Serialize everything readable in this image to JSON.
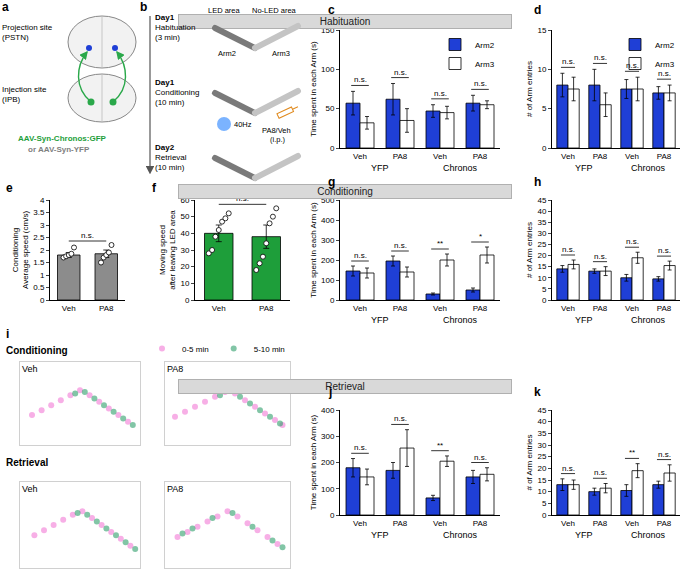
{
  "diagram_a": {
    "label": "a",
    "projection_site": [
      "Projection site",
      "(PSTN)"
    ],
    "injection_site": [
      "Injection site",
      "(IPB)"
    ],
    "virus": "AAV-Syn-Chronos:GFP",
    "control_virus": "or AAV-Syn-YFP"
  },
  "diagram_b": {
    "label": "b",
    "steps": [
      {
        "day": "Day1",
        "name": "Habituation",
        "duration": "(3 min)"
      },
      {
        "day": "Day1",
        "name": "Conditioning",
        "duration": "(10 min)"
      },
      {
        "day": "Day2",
        "name": "Retrieval",
        "duration": "(10 min)"
      }
    ],
    "led_area": "LED area",
    "no_led_area": "No-LED area",
    "arms": [
      "Arm2",
      "Arm3"
    ],
    "stimulation": "40Hz",
    "injection": [
      "PA8/Veh",
      "(i.p.)"
    ]
  },
  "chart_data": [
    {
      "label": "c",
      "type": "bar",
      "header": "Habituation",
      "y_label": [
        "Time spent in each Arm (s)"
      ],
      "categories": [
        "Veh",
        "PA8",
        "Veh",
        "PA8"
      ],
      "group_labels": [
        "YFP",
        "YFP",
        "Chronos",
        "Chronos"
      ],
      "legend": "upper right",
      "series": [
        {
          "name": "Arm2",
          "color": "#1f3fd6",
          "values": [
            57,
            62,
            47,
            57
          ],
          "errors": [
            15,
            20,
            8,
            10
          ]
        },
        {
          "name": "Arm3",
          "color": "#ffffff",
          "values": [
            32,
            35,
            45,
            55
          ],
          "errors": [
            8,
            15,
            8,
            5
          ]
        }
      ],
      "significance": [
        "n.s.",
        "n.s.",
        "n.s.",
        "n.s."
      ],
      "ylim": [
        0,
        150
      ],
      "yticks": [
        0,
        50,
        100,
        150
      ]
    },
    {
      "label": "d",
      "type": "bar",
      "y_label": [
        "# of Arm entries"
      ],
      "categories": [
        "Veh",
        "PA8",
        "Veh",
        "PA8"
      ],
      "group_labels": [
        "YFP",
        "YFP",
        "Chronos",
        "Chronos"
      ],
      "legend": "upper right",
      "series": [
        {
          "name": "Arm2",
          "color": "#1f3fd6",
          "values": [
            8,
            8,
            7.5,
            7
          ],
          "errors": [
            1.5,
            2,
            1.2,
            0.8
          ]
        },
        {
          "name": "Arm3",
          "color": "#ffffff",
          "values": [
            7.5,
            5.5,
            7.5,
            7
          ],
          "errors": [
            1.5,
            1.5,
            1.5,
            1
          ]
        }
      ],
      "significance": [
        "n.s.",
        "n.s.",
        "n.s.",
        "n.s."
      ],
      "ylim": [
        0,
        15
      ],
      "yticks": [
        0,
        5,
        10,
        15
      ]
    },
    {
      "label": "e",
      "type": "bar",
      "y_label": [
        "Conditioning",
        "Average speed (cm/s)"
      ],
      "categories": [
        "Veh",
        "PA8"
      ],
      "color": "#8c8c8c",
      "values": [
        1.8,
        1.85
      ],
      "errors": [
        0.1,
        0.15
      ],
      "points": [
        [
          1.7,
          1.75,
          1.8,
          1.85,
          2.1
        ],
        [
          1.5,
          1.7,
          1.8,
          1.9,
          2.2
        ]
      ],
      "significance": "n.s.",
      "ylim": [
        0,
        4
      ],
      "yticks": [
        0,
        0.5,
        1,
        1.5,
        2,
        2.5,
        3,
        3.5,
        4
      ]
    },
    {
      "label": "f",
      "type": "bar",
      "y_label": [
        "Moving speed",
        "after leaving LED area"
      ],
      "categories": [
        "Veh",
        "PA8"
      ],
      "color": "#1e9e3a",
      "values": [
        40,
        38
      ],
      "errors": [
        5,
        7
      ],
      "points": [
        [
          28,
          30,
          38,
          42,
          47,
          49,
          52
        ],
        [
          18,
          22,
          26,
          34,
          46,
          50,
          55
        ]
      ],
      "significance": "n.s.",
      "ylim": [
        0,
        60
      ],
      "yticks": [
        0,
        10,
        20,
        30,
        40,
        50,
        60
      ]
    },
    {
      "label": "g",
      "type": "bar",
      "header": "Conditioning",
      "y_label": [
        "Time spent in each Arm (s)"
      ],
      "categories": [
        "Veh",
        "PA8",
        "Veh",
        "PA8"
      ],
      "group_labels": [
        "YFP",
        "YFP",
        "Chronos",
        "Chronos"
      ],
      "series": [
        {
          "name": "Arm2",
          "color": "#1f3fd6",
          "values": [
            145,
            195,
            30,
            50
          ],
          "errors": [
            25,
            25,
            5,
            10
          ]
        },
        {
          "name": "Arm3",
          "color": "#ffffff",
          "values": [
            135,
            140,
            200,
            225
          ],
          "errors": [
            25,
            25,
            30,
            40
          ]
        }
      ],
      "significance": [
        "n.s.",
        "n.s.",
        "**",
        "*"
      ],
      "ylim": [
        0,
        500
      ],
      "yticks": [
        0,
        100,
        200,
        300,
        400,
        500
      ]
    },
    {
      "label": "h",
      "type": "bar",
      "y_label": [
        "# of Arm entries"
      ],
      "categories": [
        "Veh",
        "PA8",
        "Veh",
        "PA8"
      ],
      "group_labels": [
        "YFP",
        "YFP",
        "Chronos",
        "Chronos"
      ],
      "series": [
        {
          "name": "Arm2",
          "color": "#1f3fd6",
          "values": [
            14,
            13,
            10,
            9.5
          ],
          "errors": [
            1.5,
            1,
            1.5,
            1
          ]
        },
        {
          "name": "Arm3",
          "color": "#ffffff",
          "values": [
            16,
            13,
            19,
            15.5
          ],
          "errors": [
            2,
            2,
            2.5,
            2
          ]
        }
      ],
      "significance": [
        "n.s.",
        "n.s.",
        "n.s.",
        "n.s."
      ],
      "ylim": [
        0,
        45
      ],
      "yticks": [
        0,
        5,
        10,
        15,
        20,
        25,
        30,
        35,
        40,
        45
      ]
    },
    {
      "label": "i",
      "type": "scatter",
      "row_label": "Conditioning",
      "title": "Veh",
      "xlim": [
        0,
        10
      ],
      "ylim": [
        0,
        5
      ],
      "tick_labels": false,
      "legend": "upper right",
      "series": [
        {
          "name": "0-5 min",
          "color": "#f27ad6",
          "x": [
            1.0,
            1.8,
            2.6,
            3.4,
            4.2,
            5.0,
            5.8,
            6.6,
            7.4,
            8.2,
            9.0
          ],
          "y": [
            1.8,
            2.1,
            2.4,
            2.7,
            3.0,
            3.3,
            3.0,
            2.6,
            2.2,
            1.8,
            1.4
          ]
        },
        {
          "name": "5-10 min",
          "color": "#2e9e6a",
          "x": [
            4.6,
            5.4,
            6.2,
            7.0,
            7.8,
            8.6,
            9.4
          ],
          "y": [
            3.1,
            3.2,
            2.8,
            2.4,
            2.0,
            1.6,
            1.2
          ]
        }
      ]
    },
    {
      "type": "scatter",
      "title": "PA8",
      "xlim": [
        0,
        10
      ],
      "ylim": [
        0,
        5
      ],
      "tick_labels": false,
      "series": [
        {
          "name": "0-5 min",
          "color": "#f27ad6",
          "x": [
            0.8,
            1.6,
            2.4,
            3.2,
            4.0,
            4.8,
            5.6,
            6.4,
            7.2,
            8.0,
            8.8,
            9.4
          ],
          "y": [
            1.7,
            2.0,
            2.3,
            2.6,
            2.9,
            3.2,
            3.1,
            2.7,
            2.3,
            1.9,
            1.5,
            1.2
          ]
        },
        {
          "name": "5-10 min",
          "color": "#2e9e6a",
          "x": [
            4.4,
            5.2,
            6.0,
            6.8,
            7.6,
            8.4,
            9.2
          ],
          "y": [
            3.0,
            3.3,
            2.9,
            2.5,
            2.1,
            1.7,
            1.3
          ]
        }
      ]
    },
    {
      "type": "scatter",
      "row_label": "Retrieval",
      "title": "Veh",
      "xlim": [
        0,
        10
      ],
      "ylim": [
        0,
        5
      ],
      "tick_labels": false,
      "series": [
        {
          "name": "0-5 min",
          "color": "#f27ad6",
          "x": [
            1.2,
            2.0,
            2.8,
            3.6,
            4.4,
            5.2,
            6.0,
            6.8,
            7.6,
            8.4,
            9.2
          ],
          "y": [
            1.9,
            2.2,
            2.5,
            2.8,
            3.1,
            3.3,
            2.9,
            2.5,
            2.1,
            1.7,
            1.3
          ]
        },
        {
          "name": "5-10 min",
          "color": "#2e9e6a",
          "x": [
            4.8,
            5.6,
            6.4,
            7.2,
            8.0,
            8.8,
            9.6
          ],
          "y": [
            3.2,
            3.1,
            2.7,
            2.3,
            1.9,
            1.5,
            1.1
          ]
        }
      ]
    },
    {
      "type": "scatter",
      "title": "PA8",
      "xlim": [
        0,
        10
      ],
      "ylim": [
        0,
        5
      ],
      "tick_labels": false,
      "series": [
        {
          "name": "0-5 min",
          "color": "#f27ad6",
          "x": [
            1.0,
            1.8,
            2.6,
            3.4,
            4.2,
            5.0,
            5.8,
            6.6,
            7.4,
            8.2,
            9.0
          ],
          "y": [
            1.8,
            2.1,
            2.4,
            2.7,
            3.0,
            3.3,
            3.0,
            2.6,
            2.2,
            1.8,
            1.4
          ]
        },
        {
          "name": "5-10 min",
          "color": "#2e9e6a",
          "x": [
            1.4,
            2.2,
            3.8,
            5.4,
            7.0,
            8.6,
            9.4
          ],
          "y": [
            2.0,
            2.3,
            2.9,
            3.2,
            2.4,
            1.6,
            1.2
          ]
        }
      ]
    },
    {
      "label": "j",
      "type": "bar",
      "header": "Retrieval",
      "y_label": [
        "Time spent in each Arm (s)"
      ],
      "categories": [
        "Veh",
        "PA8",
        "Veh",
        "PA8"
      ],
      "group_labels": [
        "YFP",
        "YFP",
        "Chronos",
        "Chronos"
      ],
      "series": [
        {
          "name": "Arm2",
          "color": "#1f3fd6",
          "values": [
            180,
            170,
            65,
            145
          ],
          "errors": [
            35,
            30,
            10,
            25
          ]
        },
        {
          "name": "Arm3",
          "color": "#ffffff",
          "values": [
            145,
            255,
            205,
            155
          ],
          "errors": [
            30,
            70,
            20,
            25
          ]
        }
      ],
      "significance": [
        "n.s.",
        "n.s.",
        "**",
        "n.s."
      ],
      "ylim": [
        0,
        400
      ],
      "yticks": [
        0,
        100,
        200,
        300,
        400
      ]
    },
    {
      "label": "k",
      "type": "bar",
      "y_label": [
        "# of Arm entries"
      ],
      "categories": [
        "Veh",
        "PA8",
        "Veh",
        "PA8"
      ],
      "group_labels": [
        "YFP",
        "YFP",
        "Chronos",
        "Chronos"
      ],
      "series": [
        {
          "name": "Arm2",
          "color": "#1f3fd6",
          "values": [
            13,
            10,
            10.5,
            13
          ],
          "errors": [
            2.5,
            1.5,
            2.5,
            1.5
          ]
        },
        {
          "name": "Arm3",
          "color": "#ffffff",
          "values": [
            13,
            11.5,
            19,
            18
          ],
          "errors": [
            2,
            2,
            3,
            3.5
          ]
        }
      ],
      "significance": [
        "n.s.",
        "n.s.",
        "**",
        "n.s."
      ],
      "ylim": [
        0,
        45
      ],
      "yticks": [
        0,
        5,
        10,
        15,
        20,
        25,
        30,
        35,
        40,
        45
      ]
    }
  ]
}
